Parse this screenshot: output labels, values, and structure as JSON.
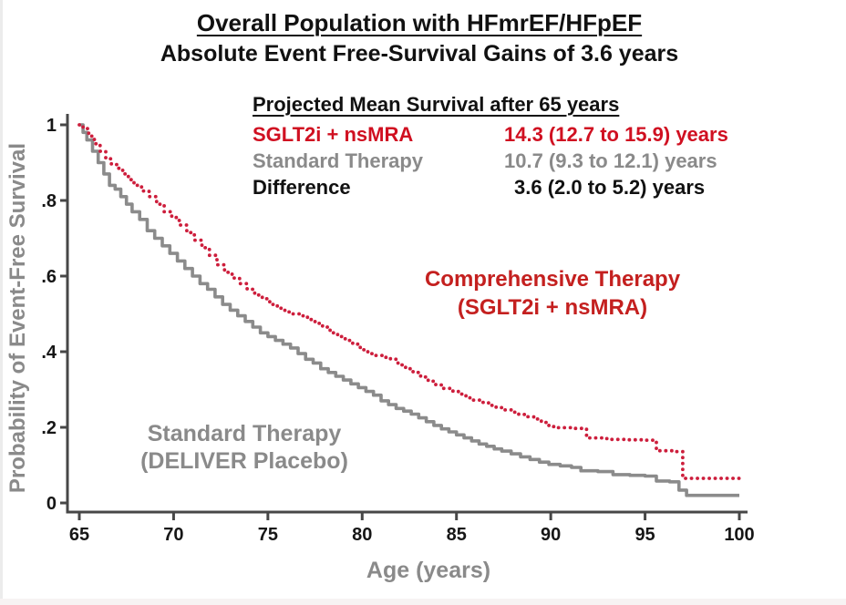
{
  "header": {
    "title": "Overall Population with HFmrEF/HFpEF",
    "subtitle": "Absolute Event Free-Survival Gains of 3.6 years"
  },
  "stats": {
    "heading": "Projected Mean Survival after 65 years",
    "rows": [
      {
        "label": "SGLT2i + nsMRA",
        "value": "14.3 (12.7 to 15.9) years",
        "color": "red"
      },
      {
        "label": "Standard Therapy",
        "value": "10.7 (9.3 to 12.1) years",
        "color": "gray"
      },
      {
        "label": "Difference",
        "value": "3.6 (2.0 to 5.2) years",
        "color": "black"
      }
    ]
  },
  "annotations": {
    "comprehensive": {
      "line1": "Comprehensive Therapy",
      "line2": "(SGLT2i + nsMRA)"
    },
    "standard": {
      "line1": "Standard Therapy",
      "line2": "(DELIVER Placebo)"
    }
  },
  "colors": {
    "stats_red": "#d01021",
    "label_red": "#c4201f",
    "curve_red": "#cd1e3c",
    "curve_gray": "#8b8b8b",
    "text_gray": "#8a8a8a",
    "axis": "#474747",
    "tick_text": "#161616"
  },
  "chart_data": {
    "type": "line",
    "subtype": "step-survival-curves",
    "title": "Overall Population with HFmrEF/HFpEF — Absolute Event Free-Survival Gains of 3.6 years",
    "xlabel": "Age (years)",
    "ylabel": "Probability of Event-Free Survival",
    "xlim": [
      65,
      100
    ],
    "ylim": [
      0,
      1
    ],
    "grid": false,
    "legend_position": "inline-annotations",
    "x_ticks": [
      65,
      70,
      75,
      80,
      85,
      90,
      95,
      100
    ],
    "y_ticks": [
      {
        "v": 1.0,
        "label": "1"
      },
      {
        "v": 0.8,
        "label": ".8"
      },
      {
        "v": 0.6,
        "label": ".6"
      },
      {
        "v": 0.4,
        "label": ".4"
      },
      {
        "v": 0.2,
        "label": ".2"
      },
      {
        "v": 0.0,
        "label": "0"
      }
    ],
    "series": [
      {
        "name": "Standard Therapy (DELIVER Placebo)",
        "style": "solid",
        "color": "#8b8b8b",
        "mean_survival_years": "10.7 (9.3 to 12.1)",
        "points": [
          [
            65,
            1
          ],
          [
            65.2,
            0.98
          ],
          [
            65.4,
            0.96
          ],
          [
            65.7,
            0.93
          ],
          [
            66,
            0.9
          ],
          [
            66.3,
            0.87
          ],
          [
            66.6,
            0.84
          ],
          [
            66.9,
            0.83
          ],
          [
            67.2,
            0.81
          ],
          [
            67.5,
            0.79
          ],
          [
            67.8,
            0.77
          ],
          [
            68.2,
            0.75
          ],
          [
            68.6,
            0.72
          ],
          [
            69,
            0.7
          ],
          [
            69.4,
            0.68
          ],
          [
            69.8,
            0.66
          ],
          [
            70.2,
            0.64
          ],
          [
            70.6,
            0.62
          ],
          [
            71,
            0.6
          ],
          [
            71.4,
            0.58
          ],
          [
            71.8,
            0.565
          ],
          [
            72.2,
            0.545
          ],
          [
            72.6,
            0.525
          ],
          [
            73,
            0.51
          ],
          [
            73.4,
            0.495
          ],
          [
            73.8,
            0.48
          ],
          [
            74.2,
            0.465
          ],
          [
            74.6,
            0.45
          ],
          [
            75,
            0.44
          ],
          [
            75.4,
            0.43
          ],
          [
            75.8,
            0.42
          ],
          [
            76.2,
            0.41
          ],
          [
            76.6,
            0.395
          ],
          [
            77,
            0.38
          ],
          [
            77.4,
            0.37
          ],
          [
            77.8,
            0.355
          ],
          [
            78.2,
            0.345
          ],
          [
            78.6,
            0.335
          ],
          [
            79,
            0.325
          ],
          [
            79.4,
            0.315
          ],
          [
            79.8,
            0.305
          ],
          [
            80.2,
            0.295
          ],
          [
            80.6,
            0.285
          ],
          [
            81,
            0.27
          ],
          [
            81.4,
            0.26
          ],
          [
            81.8,
            0.25
          ],
          [
            82.2,
            0.243
          ],
          [
            82.6,
            0.235
          ],
          [
            83,
            0.225
          ],
          [
            83.4,
            0.215
          ],
          [
            83.8,
            0.205
          ],
          [
            84.2,
            0.196
          ],
          [
            84.6,
            0.188
          ],
          [
            85,
            0.18
          ],
          [
            85.4,
            0.172
          ],
          [
            85.8,
            0.164
          ],
          [
            86.2,
            0.156
          ],
          [
            86.6,
            0.15
          ],
          [
            87,
            0.143
          ],
          [
            87.4,
            0.137
          ],
          [
            87.9,
            0.13
          ],
          [
            88.4,
            0.122
          ],
          [
            88.9,
            0.115
          ],
          [
            89.4,
            0.108
          ],
          [
            89.9,
            0.102
          ],
          [
            90.5,
            0.098
          ],
          [
            91.1,
            0.094
          ],
          [
            91.6,
            0.085
          ],
          [
            92.5,
            0.083
          ],
          [
            93.3,
            0.075
          ],
          [
            94.2,
            0.073
          ],
          [
            95,
            0.071
          ],
          [
            95.6,
            0.058
          ],
          [
            96.3,
            0.056
          ],
          [
            96.8,
            0.034
          ],
          [
            97.2,
            0.02
          ],
          [
            98.5,
            0.02
          ],
          [
            100,
            0.02
          ]
        ]
      },
      {
        "name": "Comprehensive Therapy (SGLT2i + nsMRA)",
        "style": "dotted",
        "color": "#cd1e3c",
        "mean_survival_years": "14.3 (12.7 to 15.9)",
        "points": [
          [
            65,
            1
          ],
          [
            65.2,
            0.99
          ],
          [
            65.5,
            0.97
          ],
          [
            65.8,
            0.95
          ],
          [
            66.1,
            0.93
          ],
          [
            66.4,
            0.91
          ],
          [
            66.7,
            0.895
          ],
          [
            67,
            0.885
          ],
          [
            67.3,
            0.87
          ],
          [
            67.6,
            0.855
          ],
          [
            67.9,
            0.84
          ],
          [
            68.3,
            0.825
          ],
          [
            68.7,
            0.81
          ],
          [
            69.1,
            0.79
          ],
          [
            69.5,
            0.77
          ],
          [
            69.9,
            0.755
          ],
          [
            70.3,
            0.735
          ],
          [
            70.7,
            0.715
          ],
          [
            71.1,
            0.695
          ],
          [
            71.5,
            0.675
          ],
          [
            71.9,
            0.655
          ],
          [
            72.3,
            0.63
          ],
          [
            72.7,
            0.61
          ],
          [
            73.1,
            0.595
          ],
          [
            73.5,
            0.58
          ],
          [
            73.9,
            0.565
          ],
          [
            74.3,
            0.55
          ],
          [
            74.7,
            0.54
          ],
          [
            75.1,
            0.525
          ],
          [
            75.5,
            0.515
          ],
          [
            75.9,
            0.505
          ],
          [
            76.3,
            0.5
          ],
          [
            76.7,
            0.495
          ],
          [
            77.1,
            0.485
          ],
          [
            77.5,
            0.475
          ],
          [
            77.9,
            0.465
          ],
          [
            78.3,
            0.45
          ],
          [
            78.7,
            0.44
          ],
          [
            79.1,
            0.43
          ],
          [
            79.5,
            0.42
          ],
          [
            79.9,
            0.405
          ],
          [
            80.3,
            0.395
          ],
          [
            80.7,
            0.39
          ],
          [
            81.1,
            0.385
          ],
          [
            81.5,
            0.38
          ],
          [
            81.9,
            0.365
          ],
          [
            82.3,
            0.355
          ],
          [
            82.7,
            0.345
          ],
          [
            83.1,
            0.333
          ],
          [
            83.5,
            0.322
          ],
          [
            83.9,
            0.312
          ],
          [
            84.3,
            0.303
          ],
          [
            84.7,
            0.296
          ],
          [
            85.1,
            0.288
          ],
          [
            85.5,
            0.278
          ],
          [
            85.9,
            0.272
          ],
          [
            86.3,
            0.266
          ],
          [
            86.7,
            0.258
          ],
          [
            87.1,
            0.252
          ],
          [
            87.5,
            0.246
          ],
          [
            87.9,
            0.24
          ],
          [
            88.3,
            0.234
          ],
          [
            88.7,
            0.228
          ],
          [
            89.1,
            0.222
          ],
          [
            89.5,
            0.213
          ],
          [
            89.9,
            0.202
          ],
          [
            90.4,
            0.199
          ],
          [
            91.2,
            0.197
          ],
          [
            91.9,
            0.172
          ],
          [
            92.8,
            0.17
          ],
          [
            93.2,
            0.168
          ],
          [
            94,
            0.167
          ],
          [
            95,
            0.166
          ],
          [
            95.6,
            0.138
          ],
          [
            96.5,
            0.136
          ],
          [
            97,
            0.065
          ],
          [
            98.5,
            0.065
          ],
          [
            100,
            0.065
          ]
        ]
      }
    ]
  }
}
